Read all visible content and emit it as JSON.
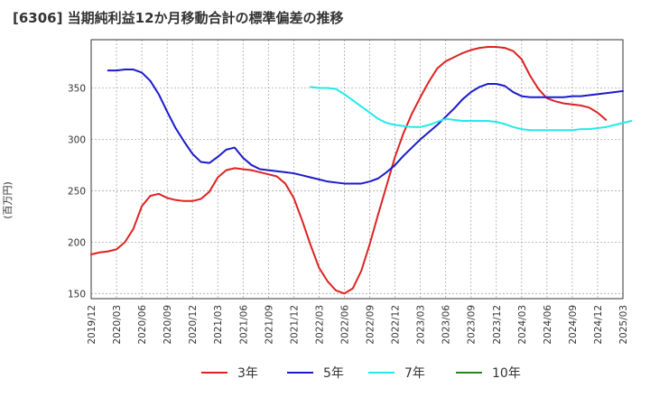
{
  "chart_data": {
    "type": "line",
    "title": "[6306]  当期純利益12か月移動合計の標準偏差の推移",
    "ylabel": "(百万円)",
    "ylim": [
      145,
      397
    ],
    "xlim": [
      "2019-12",
      "2025-03"
    ],
    "yticks": [
      150,
      200,
      250,
      300,
      350
    ],
    "grid": true,
    "legend_position": "bottom",
    "xtick_labels": [
      "2019/12",
      "2020/03",
      "2020/06",
      "2020/09",
      "2020/12",
      "2021/03",
      "2021/06",
      "2021/09",
      "2021/12",
      "2022/03",
      "2022/06",
      "2022/09",
      "2022/12",
      "2023/03",
      "2023/06",
      "2023/09",
      "2023/12",
      "2024/03",
      "2024/06",
      "2024/09",
      "2024/12",
      "2025/03"
    ],
    "series": [
      {
        "name": "3年",
        "color": "#dd2222",
        "start": "2019-12",
        "values": [
          188,
          190,
          191,
          193,
          200,
          213,
          235,
          245,
          247,
          243,
          241,
          240,
          240,
          242,
          249,
          263,
          270,
          272,
          271,
          270,
          268,
          266,
          264,
          257,
          243,
          221,
          197,
          175,
          162,
          153,
          150,
          155,
          172,
          198,
          227,
          255,
          283,
          306,
          325,
          341,
          356,
          369,
          376,
          380,
          384,
          387,
          389,
          390,
          390,
          389,
          386,
          378,
          362,
          349,
          340,
          337,
          335,
          334,
          333,
          331,
          326,
          319
        ]
      },
      {
        "name": "5年",
        "color": "#1a1acc",
        "start": "2020-02",
        "values": [
          367,
          367,
          368,
          368,
          365,
          357,
          344,
          327,
          311,
          298,
          286,
          278,
          277,
          283,
          290,
          292,
          282,
          275,
          271,
          270,
          269,
          268,
          267,
          265,
          263,
          261,
          259,
          258,
          257,
          257,
          257,
          259,
          262,
          268,
          275,
          284,
          292,
          300,
          307,
          314,
          322,
          330,
          339,
          346,
          351,
          354,
          354,
          352,
          346,
          342,
          341,
          341,
          341,
          341,
          341,
          342,
          342,
          343,
          344,
          345,
          346,
          347
        ]
      },
      {
        "name": "7年",
        "color": "#22eaea",
        "start": "2022-02",
        "values": [
          351,
          350,
          350,
          349,
          344,
          338,
          332,
          326,
          320,
          316,
          314,
          313,
          312,
          312,
          314,
          317,
          320,
          319,
          318,
          318,
          318,
          318,
          317,
          315,
          312,
          310,
          309,
          309,
          309,
          309,
          309,
          309,
          310,
          310,
          311,
          312,
          314,
          316,
          318
        ]
      },
      {
        "name": "10年",
        "color": "#228822",
        "start": "2019-12",
        "values": []
      }
    ]
  }
}
